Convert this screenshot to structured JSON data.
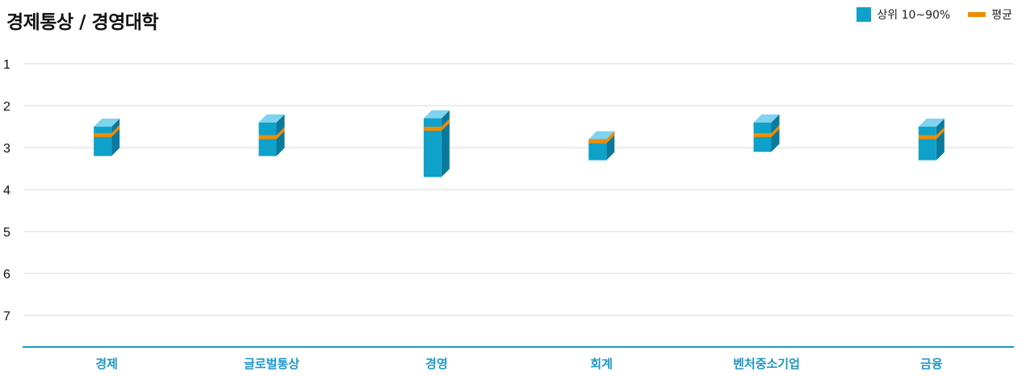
{
  "title": "경제통상 / 경영대학",
  "legend": {
    "range_label": "상위 10~90%",
    "avg_label": "평균"
  },
  "colors": {
    "bar_front": "#0ea1c9",
    "bar_side": "#0a7a9c",
    "bar_top": "#7fd3ee",
    "avg": "#f08c00",
    "axis": "#1e98c8",
    "grid": "#d9d9d9"
  },
  "chart_data": {
    "type": "bar",
    "subtype": "floating-range-with-average",
    "title": "경제통상 / 경영대학",
    "xlabel": "",
    "ylabel": "",
    "y_inverted": true,
    "ylim": [
      1,
      7.8
    ],
    "y_ticks": [
      1,
      2,
      3,
      4,
      5,
      6,
      7
    ],
    "categories": [
      "경제",
      "글로벌통상",
      "경영",
      "회계",
      "벤처중소기업",
      "금융"
    ],
    "series": [
      {
        "name": "상위 10~90%",
        "low": [
          2.5,
          2.4,
          2.3,
          2.8,
          2.4,
          2.5
        ],
        "high": [
          3.2,
          3.2,
          3.7,
          3.3,
          3.1,
          3.3
        ]
      },
      {
        "name": "평균",
        "values": [
          2.7,
          2.75,
          2.55,
          2.85,
          2.7,
          2.75
        ]
      }
    ],
    "grid": true,
    "legend_position": "top-right"
  }
}
